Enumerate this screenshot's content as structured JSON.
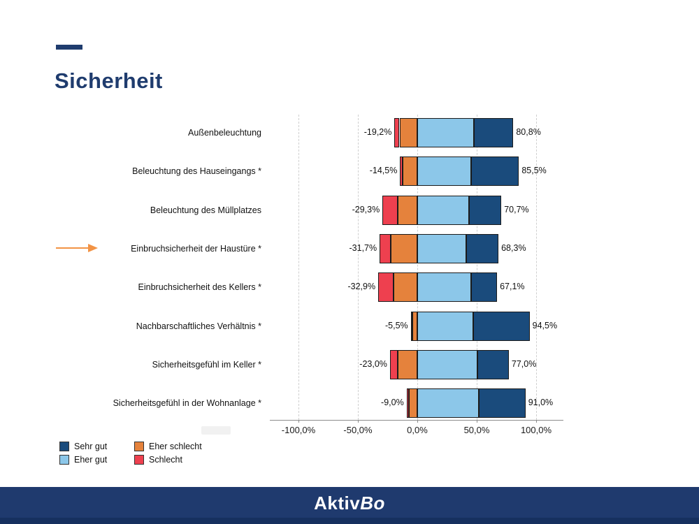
{
  "slide": {
    "title": "Sicherheit"
  },
  "colors": {
    "title_navy": "#1F3C6E",
    "sehr_gut": "#1A4B7C",
    "eher_gut": "#8CC7E9",
    "eher_schlecht": "#E5823C",
    "schlecht": "#EE404F",
    "footer_bg": "#1F3A6E",
    "arrow_orange": "#F29345",
    "gridline": "#CFCFCF",
    "axis": "#8C8C8C"
  },
  "chart_data": {
    "type": "bar",
    "orientation": "horizontal-diverging-stacked",
    "title": "",
    "xlabel": "",
    "ylabel": "",
    "xlim": [
      -100,
      100
    ],
    "grid": "vertical-dashed",
    "legend_position": "bottom-left",
    "x_ticks": [
      "-100,0%",
      "-50,0%",
      "0,0%",
      "50,0%",
      "100,0%"
    ],
    "x_tick_values": [
      -100,
      -50,
      0,
      50,
      100
    ],
    "legend": [
      {
        "label": "Sehr gut",
        "color_key": "sehr_gut"
      },
      {
        "label": "Eher gut",
        "color_key": "eher_gut"
      },
      {
        "label": "Eher schlecht",
        "color_key": "eher_schlecht"
      },
      {
        "label": "Schlecht",
        "color_key": "schlecht"
      }
    ],
    "rows": [
      {
        "label": "Außenbeleuchtung",
        "neg_label": "-19,2%",
        "pos_label": "80,8%",
        "neg_total": -19.2,
        "pos_total": 80.8,
        "schlecht": 4.2,
        "eher_schlecht": 15.0,
        "eher_gut": 47.5,
        "sehr_gut": 33.3
      },
      {
        "label": "Beleuchtung des Hauseingangs *",
        "neg_label": "-14,5%",
        "pos_label": "85,5%",
        "neg_total": -14.5,
        "pos_total": 85.5,
        "schlecht": 2.0,
        "eher_schlecht": 12.5,
        "eher_gut": 45.0,
        "sehr_gut": 40.5
      },
      {
        "label": "Beleuchtung des Müllplatzes",
        "neg_label": "-29,3%",
        "pos_label": "70,7%",
        "neg_total": -29.3,
        "pos_total": 70.7,
        "schlecht": 13.0,
        "eher_schlecht": 16.3,
        "eher_gut": 43.5,
        "sehr_gut": 27.2
      },
      {
        "label": "Einbruchsicherheit der Haustüre *",
        "neg_label": "-31,7%",
        "pos_label": "68,3%",
        "neg_total": -31.7,
        "pos_total": 68.3,
        "schlecht": 9.5,
        "eher_schlecht": 22.2,
        "eher_gut": 41.0,
        "sehr_gut": 27.3
      },
      {
        "label": "Einbruchsicherheit des Kellers *",
        "neg_label": "-32,9%",
        "pos_label": "67,1%",
        "neg_total": -32.9,
        "pos_total": 67.1,
        "schlecht": 13.0,
        "eher_schlecht": 19.9,
        "eher_gut": 45.3,
        "sehr_gut": 21.8
      },
      {
        "label": "Nachbarschaftliches Verhältnis *",
        "neg_label": "-5,5%",
        "pos_label": "94,5%",
        "neg_total": -5.5,
        "pos_total": 94.5,
        "schlecht": 1.5,
        "eher_schlecht": 4.0,
        "eher_gut": 47.0,
        "sehr_gut": 47.5
      },
      {
        "label": "Sicherheitsgefühl im Keller *",
        "neg_label": "-23,0%",
        "pos_label": "77,0%",
        "neg_total": -23.0,
        "pos_total": 77.0,
        "schlecht": 6.5,
        "eher_schlecht": 16.5,
        "eher_gut": 50.5,
        "sehr_gut": 26.5
      },
      {
        "label": "Sicherheitsgefühl in der Wohnanlage *",
        "neg_label": "-9,0%",
        "pos_label": "91,0%",
        "neg_total": -9.0,
        "pos_total": 91.0,
        "schlecht": 2.0,
        "eher_schlecht": 7.0,
        "eher_gut": 51.5,
        "sehr_gut": 39.5
      }
    ],
    "annotation": {
      "type": "arrow",
      "points_to_row": 3
    }
  },
  "footer": {
    "brand_regular": "Aktiv",
    "brand_italic": "Bo"
  }
}
